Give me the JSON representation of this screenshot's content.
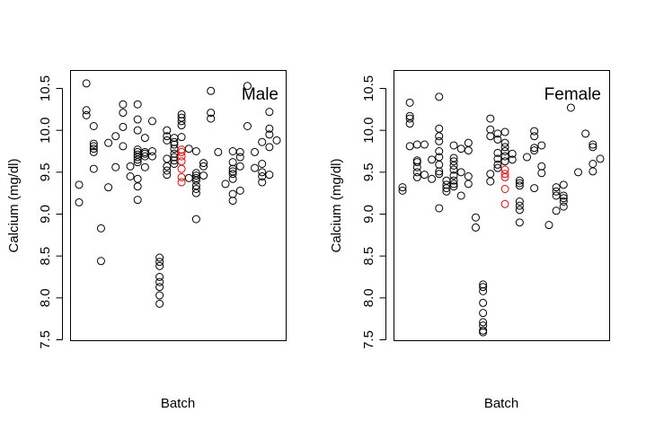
{
  "chart_data": [
    {
      "type": "scatter",
      "title": "Male",
      "xlabel": "Batch",
      "ylabel": "Calcium (mg/dl)",
      "ylim": [
        7.5,
        10.5
      ],
      "yticks": [
        "7.5",
        "8.0",
        "8.5",
        "9.0",
        "9.5",
        "10.0",
        "10.5"
      ],
      "x_axis_shown": false,
      "grid": false,
      "highlight_color": "#ff0000",
      "default_color": "#000000",
      "points": [
        {
          "x": 1,
          "y": 9.35
        },
        {
          "x": 1,
          "y": 9.14
        },
        {
          "x": 2,
          "y": 10.56
        },
        {
          "x": 2,
          "y": 10.24
        },
        {
          "x": 2,
          "y": 10.18
        },
        {
          "x": 3,
          "y": 10.05
        },
        {
          "x": 3,
          "y": 9.84
        },
        {
          "x": 3,
          "y": 9.81
        },
        {
          "x": 3,
          "y": 9.78
        },
        {
          "x": 3,
          "y": 9.74
        },
        {
          "x": 3,
          "y": 9.54
        },
        {
          "x": 4,
          "y": 8.83
        },
        {
          "x": 4,
          "y": 8.44
        },
        {
          "x": 5,
          "y": 9.85
        },
        {
          "x": 5,
          "y": 9.32
        },
        {
          "x": 6,
          "y": 9.93
        },
        {
          "x": 6,
          "y": 9.56
        },
        {
          "x": 7,
          "y": 10.31
        },
        {
          "x": 7,
          "y": 10.21
        },
        {
          "x": 7,
          "y": 10.04
        },
        {
          "x": 7,
          "y": 9.81
        },
        {
          "x": 8,
          "y": 9.57
        },
        {
          "x": 8,
          "y": 9.45
        },
        {
          "x": 9,
          "y": 10.31
        },
        {
          "x": 9,
          "y": 10.13
        },
        {
          "x": 9,
          "y": 10.0
        },
        {
          "x": 9,
          "y": 9.77
        },
        {
          "x": 9,
          "y": 9.74
        },
        {
          "x": 9,
          "y": 9.71
        },
        {
          "x": 9,
          "y": 9.68
        },
        {
          "x": 9,
          "y": 9.65
        },
        {
          "x": 9,
          "y": 9.62
        },
        {
          "x": 9,
          "y": 9.42
        },
        {
          "x": 9,
          "y": 9.33
        },
        {
          "x": 9,
          "y": 9.17
        },
        {
          "x": 10,
          "y": 9.91
        },
        {
          "x": 10,
          "y": 9.74
        },
        {
          "x": 10,
          "y": 9.72
        },
        {
          "x": 10,
          "y": 9.69
        },
        {
          "x": 10,
          "y": 9.56
        },
        {
          "x": 11,
          "y": 10.11
        },
        {
          "x": 11,
          "y": 9.75
        },
        {
          "x": 11,
          "y": 9.69
        },
        {
          "x": 12,
          "y": 8.48
        },
        {
          "x": 12,
          "y": 8.43
        },
        {
          "x": 12,
          "y": 8.38
        },
        {
          "x": 12,
          "y": 8.25
        },
        {
          "x": 12,
          "y": 8.19
        },
        {
          "x": 12,
          "y": 8.13
        },
        {
          "x": 12,
          "y": 8.03
        },
        {
          "x": 12,
          "y": 7.93
        },
        {
          "x": 13,
          "y": 10.0
        },
        {
          "x": 13,
          "y": 9.93
        },
        {
          "x": 13,
          "y": 9.88
        },
        {
          "x": 13,
          "y": 9.66
        },
        {
          "x": 13,
          "y": 9.57
        },
        {
          "x": 13,
          "y": 9.52
        },
        {
          "x": 13,
          "y": 9.47
        },
        {
          "x": 14,
          "y": 9.91
        },
        {
          "x": 14,
          "y": 9.86
        },
        {
          "x": 14,
          "y": 9.83
        },
        {
          "x": 14,
          "y": 9.78
        },
        {
          "x": 14,
          "y": 9.72
        },
        {
          "x": 14,
          "y": 9.68
        },
        {
          "x": 14,
          "y": 9.64
        },
        {
          "x": 14,
          "y": 9.6
        },
        {
          "x": 15,
          "y": 10.19
        },
        {
          "x": 15,
          "y": 10.15
        },
        {
          "x": 15,
          "y": 10.11
        },
        {
          "x": 15,
          "y": 10.06
        },
        {
          "x": 15,
          "y": 9.92
        },
        {
          "x": 15,
          "y": 9.77,
          "h": true
        },
        {
          "x": 15,
          "y": 9.74,
          "h": true
        },
        {
          "x": 15,
          "y": 9.69,
          "h": true
        },
        {
          "x": 15,
          "y": 9.63,
          "h": true
        },
        {
          "x": 15,
          "y": 9.54,
          "h": true
        },
        {
          "x": 15,
          "y": 9.44,
          "h": true
        },
        {
          "x": 15,
          "y": 9.38,
          "h": true
        },
        {
          "x": 16,
          "y": 9.78
        },
        {
          "x": 16,
          "y": 9.43
        },
        {
          "x": 17,
          "y": 9.75
        },
        {
          "x": 17,
          "y": 9.49
        },
        {
          "x": 17,
          "y": 9.46
        },
        {
          "x": 17,
          "y": 9.43
        },
        {
          "x": 17,
          "y": 9.4
        },
        {
          "x": 17,
          "y": 9.34
        },
        {
          "x": 17,
          "y": 9.3
        },
        {
          "x": 17,
          "y": 9.25
        },
        {
          "x": 17,
          "y": 8.94
        },
        {
          "x": 18,
          "y": 9.61
        },
        {
          "x": 18,
          "y": 9.57
        },
        {
          "x": 18,
          "y": 9.46
        },
        {
          "x": 19,
          "y": 10.47
        },
        {
          "x": 19,
          "y": 10.21
        },
        {
          "x": 19,
          "y": 10.14
        },
        {
          "x": 20,
          "y": 9.74
        },
        {
          "x": 21,
          "y": 9.36
        },
        {
          "x": 22,
          "y": 9.75
        },
        {
          "x": 22,
          "y": 9.62
        },
        {
          "x": 22,
          "y": 9.54
        },
        {
          "x": 22,
          "y": 9.51
        },
        {
          "x": 22,
          "y": 9.48
        },
        {
          "x": 22,
          "y": 9.42
        },
        {
          "x": 22,
          "y": 9.24
        },
        {
          "x": 22,
          "y": 9.16
        },
        {
          "x": 23,
          "y": 9.74
        },
        {
          "x": 23,
          "y": 9.68
        },
        {
          "x": 23,
          "y": 9.57
        },
        {
          "x": 23,
          "y": 9.28
        },
        {
          "x": 24,
          "y": 10.53
        },
        {
          "x": 24,
          "y": 10.05
        },
        {
          "x": 25,
          "y": 9.74
        },
        {
          "x": 25,
          "y": 9.55
        },
        {
          "x": 26,
          "y": 9.86
        },
        {
          "x": 26,
          "y": 9.6
        },
        {
          "x": 26,
          "y": 9.5
        },
        {
          "x": 26,
          "y": 9.45
        },
        {
          "x": 26,
          "y": 9.38
        },
        {
          "x": 27,
          "y": 10.22
        },
        {
          "x": 27,
          "y": 10.02
        },
        {
          "x": 27,
          "y": 9.95
        },
        {
          "x": 27,
          "y": 9.8
        },
        {
          "x": 27,
          "y": 9.47
        },
        {
          "x": 28,
          "y": 9.88
        }
      ]
    },
    {
      "type": "scatter",
      "title": "Female",
      "xlabel": "Batch",
      "ylabel": "Calcium (mg/dl)",
      "ylim": [
        7.5,
        10.5
      ],
      "yticks": [
        "7.5",
        "8.0",
        "8.5",
        "9.0",
        "9.5",
        "10.0",
        "10.5"
      ],
      "x_axis_shown": false,
      "grid": false,
      "highlight_color": "#ff0000",
      "default_color": "#000000",
      "points": [
        {
          "x": 1,
          "y": 9.32
        },
        {
          "x": 1,
          "y": 9.28
        },
        {
          "x": 2,
          "y": 10.33
        },
        {
          "x": 2,
          "y": 10.17
        },
        {
          "x": 2,
          "y": 10.14
        },
        {
          "x": 2,
          "y": 10.08
        },
        {
          "x": 2,
          "y": 9.81
        },
        {
          "x": 3,
          "y": 9.83
        },
        {
          "x": 3,
          "y": 9.64
        },
        {
          "x": 3,
          "y": 9.62
        },
        {
          "x": 3,
          "y": 9.56
        },
        {
          "x": 3,
          "y": 9.5
        },
        {
          "x": 3,
          "y": 9.44
        },
        {
          "x": 4,
          "y": 9.83
        },
        {
          "x": 4,
          "y": 9.47
        },
        {
          "x": 5,
          "y": 9.65
        },
        {
          "x": 5,
          "y": 9.42
        },
        {
          "x": 6,
          "y": 10.4
        },
        {
          "x": 6,
          "y": 10.02
        },
        {
          "x": 6,
          "y": 9.93
        },
        {
          "x": 6,
          "y": 9.87
        },
        {
          "x": 6,
          "y": 9.75
        },
        {
          "x": 6,
          "y": 9.68
        },
        {
          "x": 6,
          "y": 9.59
        },
        {
          "x": 6,
          "y": 9.51
        },
        {
          "x": 6,
          "y": 9.48
        },
        {
          "x": 6,
          "y": 9.07
        },
        {
          "x": 7,
          "y": 9.4
        },
        {
          "x": 7,
          "y": 9.35
        },
        {
          "x": 7,
          "y": 9.31
        },
        {
          "x": 7,
          "y": 9.27
        },
        {
          "x": 8,
          "y": 9.82
        },
        {
          "x": 8,
          "y": 9.67
        },
        {
          "x": 8,
          "y": 9.63
        },
        {
          "x": 8,
          "y": 9.58
        },
        {
          "x": 8,
          "y": 9.53
        },
        {
          "x": 8,
          "y": 9.46
        },
        {
          "x": 8,
          "y": 9.4
        },
        {
          "x": 8,
          "y": 9.36
        },
        {
          "x": 8,
          "y": 9.33
        },
        {
          "x": 9,
          "y": 9.78
        },
        {
          "x": 9,
          "y": 9.5
        },
        {
          "x": 9,
          "y": 9.22
        },
        {
          "x": 10,
          "y": 9.85
        },
        {
          "x": 10,
          "y": 9.76
        },
        {
          "x": 10,
          "y": 9.45
        },
        {
          "x": 10,
          "y": 9.36
        },
        {
          "x": 11,
          "y": 8.96
        },
        {
          "x": 11,
          "y": 8.84
        },
        {
          "x": 12,
          "y": 8.16
        },
        {
          "x": 12,
          "y": 8.13
        },
        {
          "x": 12,
          "y": 8.08
        },
        {
          "x": 12,
          "y": 7.94
        },
        {
          "x": 12,
          "y": 7.82
        },
        {
          "x": 12,
          "y": 7.71
        },
        {
          "x": 12,
          "y": 7.67
        },
        {
          "x": 12,
          "y": 7.61
        },
        {
          "x": 12,
          "y": 7.59
        },
        {
          "x": 13,
          "y": 10.14
        },
        {
          "x": 13,
          "y": 10.01
        },
        {
          "x": 13,
          "y": 9.93
        },
        {
          "x": 13,
          "y": 9.48
        },
        {
          "x": 13,
          "y": 9.39
        },
        {
          "x": 14,
          "y": 9.96
        },
        {
          "x": 14,
          "y": 9.89
        },
        {
          "x": 14,
          "y": 9.73
        },
        {
          "x": 14,
          "y": 9.66
        },
        {
          "x": 14,
          "y": 9.59
        },
        {
          "x": 14,
          "y": 9.55
        },
        {
          "x": 15,
          "y": 9.98
        },
        {
          "x": 15,
          "y": 9.85
        },
        {
          "x": 15,
          "y": 9.8
        },
        {
          "x": 15,
          "y": 9.75
        },
        {
          "x": 15,
          "y": 9.69
        },
        {
          "x": 15,
          "y": 9.63
        },
        {
          "x": 15,
          "y": 9.53,
          "h": true
        },
        {
          "x": 15,
          "y": 9.48,
          "h": true
        },
        {
          "x": 15,
          "y": 9.44,
          "h": true
        },
        {
          "x": 15,
          "y": 9.3,
          "h": true
        },
        {
          "x": 15,
          "y": 9.12,
          "h": true
        },
        {
          "x": 16,
          "y": 9.72
        },
        {
          "x": 16,
          "y": 9.65
        },
        {
          "x": 17,
          "y": 9.4
        },
        {
          "x": 17,
          "y": 9.37
        },
        {
          "x": 17,
          "y": 9.34
        },
        {
          "x": 17,
          "y": 9.15
        },
        {
          "x": 17,
          "y": 9.1
        },
        {
          "x": 17,
          "y": 9.05
        },
        {
          "x": 17,
          "y": 8.9
        },
        {
          "x": 18,
          "y": 9.68
        },
        {
          "x": 19,
          "y": 9.99
        },
        {
          "x": 19,
          "y": 9.93
        },
        {
          "x": 19,
          "y": 9.79
        },
        {
          "x": 19,
          "y": 9.76
        },
        {
          "x": 19,
          "y": 9.31
        },
        {
          "x": 20,
          "y": 9.82
        },
        {
          "x": 20,
          "y": 9.57
        },
        {
          "x": 20,
          "y": 9.49
        },
        {
          "x": 21,
          "y": 8.87
        },
        {
          "x": 22,
          "y": 9.32
        },
        {
          "x": 22,
          "y": 9.27
        },
        {
          "x": 22,
          "y": 9.22
        },
        {
          "x": 22,
          "y": 9.04
        },
        {
          "x": 23,
          "y": 9.35
        },
        {
          "x": 23,
          "y": 9.22
        },
        {
          "x": 23,
          "y": 9.19
        },
        {
          "x": 23,
          "y": 9.15
        },
        {
          "x": 23,
          "y": 9.09
        },
        {
          "x": 24,
          "y": 10.27
        },
        {
          "x": 25,
          "y": 9.5
        },
        {
          "x": 26,
          "y": 9.96
        },
        {
          "x": 27,
          "y": 9.83
        },
        {
          "x": 27,
          "y": 9.8
        },
        {
          "x": 27,
          "y": 9.6
        },
        {
          "x": 27,
          "y": 9.51
        },
        {
          "x": 28,
          "y": 9.66
        }
      ]
    }
  ]
}
